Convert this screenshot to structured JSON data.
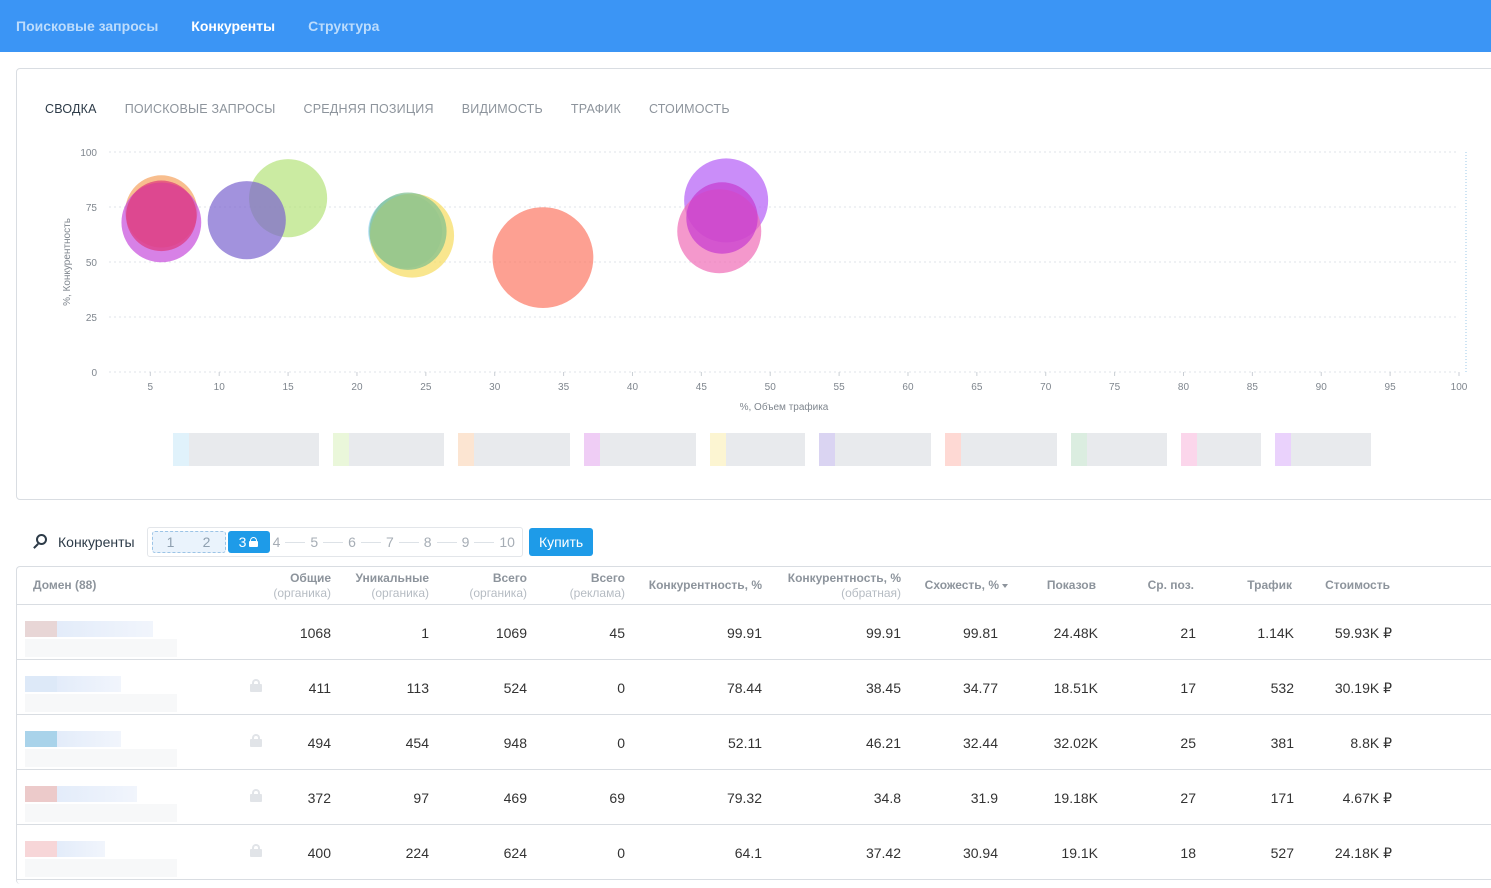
{
  "nav": {
    "items": [
      {
        "label": "Поисковые запросы",
        "active": false
      },
      {
        "label": "Конкуренты",
        "active": true
      },
      {
        "label": "Структура",
        "active": false
      }
    ]
  },
  "tabs": [
    {
      "label": "СВОДКА",
      "active": true
    },
    {
      "label": "ПОИСКОВЫЕ ЗАПРОСЫ",
      "active": false
    },
    {
      "label": "СРЕДНЯЯ ПОЗИЦИЯ",
      "active": false
    },
    {
      "label": "ВИДИМОСТЬ",
      "active": false
    },
    {
      "label": "ТРАФИК",
      "active": false
    },
    {
      "label": "СТОИМОСТЬ",
      "active": false
    }
  ],
  "chart_data": {
    "type": "scatter",
    "xlabel": "%, Объем трафика",
    "ylabel": "%, Конкурентность",
    "xlim": [
      2,
      100
    ],
    "ylim": [
      0,
      100
    ],
    "xticks": [
      5,
      10,
      15,
      20,
      25,
      30,
      35,
      40,
      45,
      50,
      55,
      60,
      65,
      70,
      75,
      80,
      85,
      90,
      95,
      100
    ],
    "yticks": [
      0,
      25,
      50,
      75,
      100
    ],
    "grid": true,
    "bubbles": [
      {
        "x": 5.8,
        "y": 73,
        "size": 0.86,
        "color": "#f5a35e"
      },
      {
        "x": 5.8,
        "y": 68,
        "size": 0.95,
        "color": "#c64bdc"
      },
      {
        "x": 5.8,
        "y": 71,
        "size": 0.84,
        "color": "#e0387a"
      },
      {
        "x": 15.0,
        "y": 79,
        "size": 0.93,
        "color": "#b5e27a"
      },
      {
        "x": 12.0,
        "y": 69,
        "size": 0.93,
        "color": "#7b64cf"
      },
      {
        "x": 23.5,
        "y": 64,
        "size": 0.88,
        "color": "#8ed0f0"
      },
      {
        "x": 24.0,
        "y": 62,
        "size": 1.0,
        "color": "#f6dc5e"
      },
      {
        "x": 23.7,
        "y": 64,
        "size": 0.92,
        "color": "#7cbf8e"
      },
      {
        "x": 33.5,
        "y": 52,
        "size": 1.2,
        "color": "#fc7864"
      },
      {
        "x": 46.8,
        "y": 78,
        "size": 1.0,
        "color": "#b35cf6"
      },
      {
        "x": 46.3,
        "y": 64,
        "size": 1.0,
        "color": "#ef6cb6"
      },
      {
        "x": 46.5,
        "y": 70,
        "size": 0.85,
        "color": "#c63ad0"
      }
    ]
  },
  "legend": [
    {
      "color": "#8ed0f0",
      "width": 130
    },
    {
      "color": "#b5e27a",
      "width": 95
    },
    {
      "color": "#f5a35e",
      "width": 96
    },
    {
      "color": "#c64bdc",
      "width": 96
    },
    {
      "color": "#f6dc5e",
      "width": 79
    },
    {
      "color": "#7b64cf",
      "width": 96
    },
    {
      "color": "#fc7864",
      "width": 96
    },
    {
      "color": "#7cbf8e",
      "width": 80
    },
    {
      "color": "#ef6cb6",
      "width": 64
    },
    {
      "color": "#b35cf6",
      "width": 80
    }
  ],
  "toolbar": {
    "search_label": "Конкуренты",
    "pages_free": [
      "1",
      "2"
    ],
    "page_current": "3",
    "pages_locked": [
      "4",
      "5",
      "6",
      "7",
      "8",
      "9",
      "10"
    ],
    "buy_label": "Купить"
  },
  "table": {
    "headers": {
      "domain": "Домен (88)",
      "common": "Общие",
      "common_sub": "(органика)",
      "unique": "Уникальные",
      "unique_sub": "(органика)",
      "total": "Всего",
      "total_sub": "(органика)",
      "total_ads": "Всего",
      "total_ads_sub": "(реклама)",
      "competition": "Конкурентность, %",
      "competition_rev": "Конкурентность, %",
      "competition_rev_sub": "(обратная)",
      "similarity": "Схожесть, %",
      "impressions": "Показов",
      "avg_pos": "Ср. поз.",
      "traffic": "Трафик",
      "cost": "Стоимость"
    },
    "rows": [
      {
        "common": "1068",
        "unique": "1",
        "total": "1069",
        "total_ads": "45",
        "competition": "99.91",
        "competition_rev": "99.91",
        "similarity": "99.81",
        "impressions": "24.48K",
        "avg_pos": "21",
        "traffic": "1.14K",
        "cost": "59.93K ₽",
        "locked": false,
        "fav": "#e8d6d6",
        "txt_w": 96
      },
      {
        "common": "411",
        "unique": "113",
        "total": "524",
        "total_ads": "0",
        "competition": "78.44",
        "competition_rev": "38.45",
        "similarity": "34.77",
        "impressions": "18.51K",
        "avg_pos": "17",
        "traffic": "532",
        "cost": "30.19K ₽",
        "locked": true,
        "fav": "#dde9f8",
        "txt_w": 64
      },
      {
        "common": "494",
        "unique": "454",
        "total": "948",
        "total_ads": "0",
        "competition": "52.11",
        "competition_rev": "46.21",
        "similarity": "32.44",
        "impressions": "32.02K",
        "avg_pos": "25",
        "traffic": "381",
        "cost": "8.8K ₽",
        "locked": true,
        "fav": "#a9d3ea",
        "txt_w": 64
      },
      {
        "common": "372",
        "unique": "97",
        "total": "469",
        "total_ads": "69",
        "competition": "79.32",
        "competition_rev": "34.8",
        "similarity": "31.9",
        "impressions": "19.18K",
        "avg_pos": "27",
        "traffic": "171",
        "cost": "4.67K ₽",
        "locked": true,
        "fav": "#eccaca",
        "txt_w": 80
      },
      {
        "common": "400",
        "unique": "224",
        "total": "624",
        "total_ads": "0",
        "competition": "64.1",
        "competition_rev": "37.42",
        "similarity": "30.94",
        "impressions": "19.1K",
        "avg_pos": "18",
        "traffic": "527",
        "cost": "24.18K ₽",
        "locked": true,
        "fav": "#f7d6d8",
        "txt_w": 48
      }
    ]
  }
}
